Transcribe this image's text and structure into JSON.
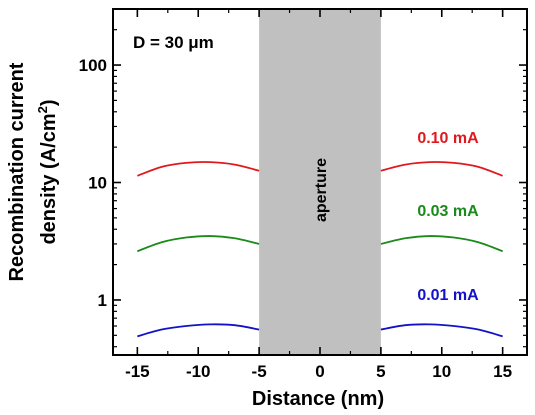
{
  "chart_data": {
    "type": "line",
    "xlabel": "Distance (nm)",
    "ylabel_line1": "Recombination current",
    "ylabel_line2_prefix": "density (A/cm",
    "ylabel_superscript": "2",
    "ylabel_line2_suffix": ")",
    "yscale": "log",
    "xlim": [
      -17,
      17
    ],
    "ylim": [
      0.34,
      300
    ],
    "x_ticks": [
      -15,
      -10,
      -5,
      0,
      5,
      10,
      15
    ],
    "x_tick_labels": [
      "-15",
      "-10",
      "-5",
      "0",
      "5",
      "10",
      "15"
    ],
    "y_ticks": [
      1,
      10,
      100
    ],
    "y_tick_labels": [
      "1",
      "10",
      "100"
    ],
    "annotation": "D = 30 μm",
    "aperture": {
      "x_start": -5,
      "x_end": 5,
      "label": "aperture",
      "color": "#c0c0c0"
    },
    "series": [
      {
        "name": "0.10 mA",
        "color": "#e0191e",
        "left": {
          "x": [
            -15,
            -13,
            -11,
            -9,
            -7,
            -5
          ],
          "y": [
            11.4,
            13.6,
            14.7,
            14.9,
            14.2,
            12.6
          ]
        },
        "right": {
          "x": [
            5,
            7,
            9,
            11,
            13,
            15
          ],
          "y": [
            12.6,
            14.2,
            14.9,
            14.7,
            13.6,
            11.4
          ]
        }
      },
      {
        "name": "0.03 mA",
        "color": "#1a8a1a",
        "left": {
          "x": [
            -15,
            -13,
            -11,
            -9,
            -7,
            -5
          ],
          "y": [
            2.6,
            3.1,
            3.4,
            3.5,
            3.35,
            3.0
          ]
        },
        "right": {
          "x": [
            5,
            7,
            9,
            11,
            13,
            15
          ],
          "y": [
            3.0,
            3.35,
            3.5,
            3.4,
            3.1,
            2.6
          ]
        }
      },
      {
        "name": "0.01 mA",
        "color": "#1212c8",
        "left": {
          "x": [
            -15,
            -13,
            -11,
            -9,
            -7,
            -5
          ],
          "y": [
            0.49,
            0.56,
            0.6,
            0.62,
            0.61,
            0.56
          ]
        },
        "right": {
          "x": [
            5,
            7,
            9,
            11,
            13,
            15
          ],
          "y": [
            0.56,
            0.61,
            0.62,
            0.6,
            0.56,
            0.49
          ]
        }
      }
    ]
  }
}
